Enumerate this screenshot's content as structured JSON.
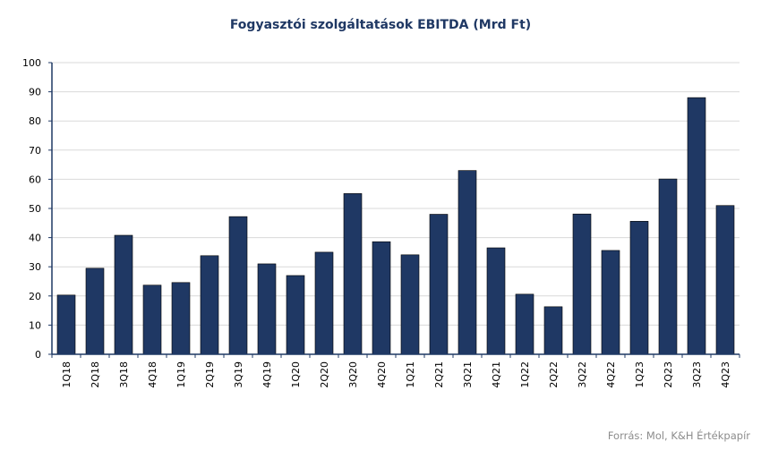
{
  "chart_data": {
    "type": "bar",
    "title": "Fogyasztói szolgáltatások EBITDA (Mrd Ft)",
    "xlabel": "",
    "ylabel": "",
    "categories": [
      "1Q18",
      "2Q18",
      "3Q18",
      "4Q18",
      "1Q19",
      "2Q19",
      "3Q19",
      "4Q19",
      "1Q20",
      "2Q20",
      "3Q20",
      "4Q20",
      "1Q21",
      "2Q21",
      "3Q21",
      "4Q21",
      "1Q22",
      "2Q22",
      "3Q22",
      "4Q22",
      "1Q23",
      "2Q23",
      "3Q23",
      "4Q23"
    ],
    "values": [
      20.3,
      29.5,
      40.8,
      23.7,
      24.6,
      33.8,
      47.2,
      31.0,
      27.0,
      35.0,
      55.1,
      38.6,
      34.1,
      48.0,
      63.0,
      36.5,
      20.6,
      16.3,
      48.1,
      35.6,
      45.6,
      60.1,
      88.0,
      51.0
    ],
    "ylim": [
      0,
      100
    ],
    "yticks": [
      0,
      10,
      20,
      30,
      40,
      50,
      60,
      70,
      80,
      90,
      100
    ],
    "grid": true,
    "bar_color": "#1f3864"
  },
  "source": "Forrás: Mol, K&H Értékpapír"
}
